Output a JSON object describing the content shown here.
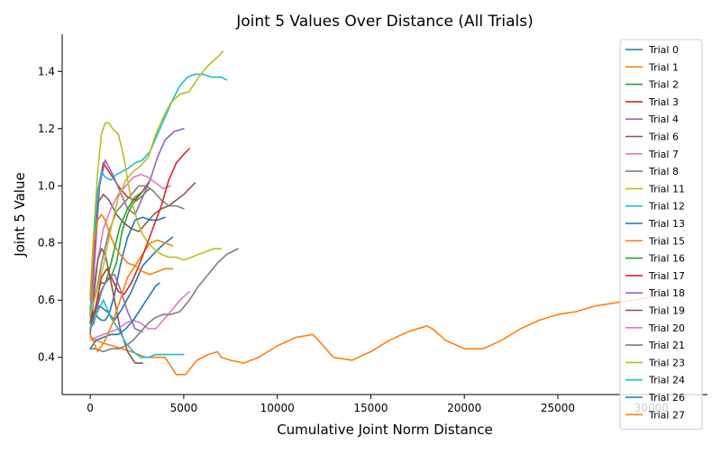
{
  "chart_data": {
    "type": "line",
    "title": "Joint 5 Values Over Distance (All Trials)",
    "xlabel": "Cumulative Joint Norm Distance",
    "ylabel": "Joint 5 Value",
    "xlim": [
      -1500,
      33000
    ],
    "ylim": [
      0.27,
      1.53
    ],
    "xticks": [
      0,
      5000,
      10000,
      15000,
      20000,
      25000,
      30000
    ],
    "yticks": [
      0.4,
      0.6,
      0.8,
      1.0,
      1.2,
      1.4
    ],
    "xtick_labels": [
      "0",
      "5000",
      "10000",
      "15000",
      "20000",
      "25000",
      "30000"
    ],
    "ytick_labels": [
      "0.4",
      "0.6",
      "0.8",
      "1.0",
      "1.2",
      "1.4"
    ],
    "grid": false,
    "legend_position": "upper right",
    "series": [
      {
        "name": "Trial 0",
        "color": "#1f77b4",
        "x": [
          0,
          200,
          500,
          900,
          1300,
          1700,
          2200,
          2800,
          3500,
          4000,
          4400
        ],
        "y": [
          0.52,
          0.55,
          0.58,
          0.56,
          0.53,
          0.57,
          0.63,
          0.72,
          0.77,
          0.8,
          0.82
        ]
      },
      {
        "name": "Trial 1",
        "color": "#ff7f0e",
        "x": [
          0,
          300,
          700,
          1200,
          1700,
          2200,
          2600,
          3000,
          3500,
          4000,
          4600,
          5100,
          5700,
          6300,
          6800,
          7000,
          7500,
          8200,
          9000,
          10000,
          11000,
          11900,
          12200,
          13000,
          14000,
          15000,
          16000,
          17000,
          18000,
          18300,
          19000,
          20000,
          21000,
          22000,
          23000,
          24000,
          25000,
          26000,
          27000,
          28000,
          29000,
          30000,
          31000
        ],
        "y": [
          0.47,
          0.46,
          0.45,
          0.44,
          0.43,
          0.42,
          0.41,
          0.4,
          0.4,
          0.4,
          0.34,
          0.34,
          0.39,
          0.41,
          0.42,
          0.4,
          0.39,
          0.38,
          0.4,
          0.44,
          0.47,
          0.48,
          0.46,
          0.4,
          0.39,
          0.42,
          0.46,
          0.49,
          0.51,
          0.5,
          0.46,
          0.43,
          0.43,
          0.46,
          0.5,
          0.53,
          0.55,
          0.56,
          0.58,
          0.59,
          0.6,
          0.61,
          0.62
        ]
      },
      {
        "name": "Trial 2",
        "color": "#2ca02c",
        "x": [
          0,
          200,
          500,
          800,
          1100,
          1400,
          1700,
          2000,
          2300,
          2700,
          3000,
          3200
        ],
        "y": [
          0.5,
          0.55,
          0.62,
          0.66,
          0.68,
          0.73,
          0.84,
          0.9,
          0.94,
          0.96,
          0.98,
          0.99
        ]
      },
      {
        "name": "Trial 3",
        "color": "#d62728",
        "x": [
          0,
          200,
          400,
          700,
          1000,
          1300,
          1600,
          2000,
          2400,
          2800,
          3200
        ],
        "y": [
          0.55,
          0.75,
          0.98,
          1.08,
          1.05,
          1.02,
          0.99,
          0.96,
          0.95,
          0.98,
          1.02
        ]
      },
      {
        "name": "Trial 4",
        "color": "#9467bd",
        "x": [
          0,
          200,
          500,
          800,
          1200,
          1600,
          2000,
          2400,
          2800,
          3200,
          3600,
          4000,
          4500,
          5000
        ],
        "y": [
          0.52,
          0.7,
          1.0,
          1.09,
          1.04,
          0.98,
          0.92,
          0.9,
          0.96,
          1.02,
          1.1,
          1.16,
          1.19,
          1.2
        ]
      },
      {
        "name": "Trial 6",
        "color": "#8c564b",
        "x": [
          0,
          200,
          400,
          700,
          1000,
          1400,
          1800,
          2200,
          2600,
          3000,
          3400,
          3800,
          4200,
          4600,
          5000,
          5600
        ],
        "y": [
          0.55,
          0.8,
          0.94,
          0.97,
          0.95,
          0.9,
          0.87,
          0.85,
          0.84,
          0.87,
          0.9,
          0.92,
          0.93,
          0.95,
          0.97,
          1.01
        ]
      },
      {
        "name": "Trial 7",
        "color": "#e377c2",
        "x": [
          0,
          300,
          700,
          1100,
          1500,
          1900,
          2300,
          2700,
          3100,
          3500,
          3900,
          4300
        ],
        "y": [
          0.55,
          0.7,
          0.85,
          0.92,
          0.97,
          1.0,
          1.03,
          1.04,
          1.03,
          1.01,
          0.99,
          1.0
        ]
      },
      {
        "name": "Trial 8",
        "color": "#7f7f7f",
        "x": [
          0,
          300,
          600,
          1000,
          1400,
          1800,
          2200,
          2600,
          3000,
          3400,
          3800,
          4200,
          4600,
          5000
        ],
        "y": [
          0.55,
          0.62,
          0.73,
          0.84,
          0.91,
          0.94,
          0.97,
          1.0,
          1.0,
          0.98,
          0.95,
          0.93,
          0.93,
          0.92
        ]
      },
      {
        "name": "Trial 11",
        "color": "#bcbd22",
        "x": [
          0,
          200,
          400,
          600,
          800,
          1000,
          1200,
          1500,
          1800,
          2000,
          2200,
          2500,
          2800,
          3100,
          3400,
          3800,
          4200,
          4600,
          5000,
          5400,
          5800,
          6200,
          6600,
          7000
        ],
        "y": [
          0.62,
          0.85,
          1.05,
          1.18,
          1.22,
          1.22,
          1.2,
          1.18,
          1.1,
          1.02,
          0.95,
          0.88,
          0.83,
          0.8,
          0.78,
          0.76,
          0.75,
          0.75,
          0.74,
          0.75,
          0.76,
          0.77,
          0.78,
          0.78
        ]
      },
      {
        "name": "Trial 12",
        "color": "#17becf",
        "x": [
          0,
          200,
          400,
          600,
          800,
          1100,
          1400,
          1700,
          2000,
          2400,
          2800,
          3200,
          3600,
          4000,
          4400,
          4800,
          5200,
          5600,
          6000,
          6500,
          7000,
          7300
        ],
        "y": [
          0.55,
          0.8,
          0.98,
          1.05,
          1.03,
          1.02,
          1.04,
          1.05,
          1.06,
          1.08,
          1.09,
          1.12,
          1.18,
          1.24,
          1.3,
          1.35,
          1.38,
          1.39,
          1.39,
          1.38,
          1.38,
          1.37
        ]
      },
      {
        "name": "Trial 13",
        "color": "#1f77b4",
        "x": [
          0,
          200,
          400,
          600,
          800,
          1000,
          1300,
          1600,
          2000,
          2400,
          2800,
          3200,
          3600,
          4000
        ],
        "y": [
          0.52,
          0.56,
          0.54,
          0.53,
          0.53,
          0.55,
          0.62,
          0.72,
          0.82,
          0.88,
          0.89,
          0.88,
          0.88,
          0.89
        ]
      },
      {
        "name": "Trial 15",
        "color": "#ff7f0e",
        "x": [
          0,
          200,
          400,
          600,
          800,
          1000,
          1300,
          1600,
          2000,
          2400,
          2800,
          3200,
          3600,
          4000,
          4400
        ],
        "y": [
          0.6,
          0.8,
          0.88,
          0.9,
          0.88,
          0.84,
          0.79,
          0.76,
          0.73,
          0.72,
          0.76,
          0.8,
          0.81,
          0.8,
          0.79
        ]
      },
      {
        "name": "Trial 16",
        "color": "#2ca02c",
        "x": [
          0,
          200,
          400,
          600,
          800,
          1000,
          1300,
          1600,
          2000,
          2400,
          2800
        ],
        "y": [
          0.52,
          0.6,
          0.65,
          0.66,
          0.66,
          0.7,
          0.78,
          0.86,
          0.92,
          0.96,
          0.98
        ]
      },
      {
        "name": "Trial 17",
        "color": "#d62728",
        "x": [
          0,
          300,
          600,
          900,
          1200,
          1500,
          1800,
          2200,
          2600,
          3000,
          3400,
          3800,
          4200,
          4600,
          5000,
          5300
        ],
        "y": [
          0.5,
          0.58,
          0.68,
          0.71,
          0.67,
          0.63,
          0.62,
          0.66,
          0.72,
          0.79,
          0.86,
          0.93,
          1.02,
          1.08,
          1.11,
          1.13
        ]
      },
      {
        "name": "Trial 18",
        "color": "#9467bd",
        "x": [
          0,
          200,
          400,
          600,
          800,
          1000,
          1300,
          1600,
          2000,
          2400,
          2800
        ],
        "y": [
          0.5,
          0.52,
          0.58,
          0.63,
          0.66,
          0.68,
          0.69,
          0.64,
          0.56,
          0.5,
          0.49
        ]
      },
      {
        "name": "Trial 19",
        "color": "#8c564b",
        "x": [
          0,
          200,
          400,
          600,
          800,
          1000,
          1300,
          1600,
          2000,
          2400,
          2800
        ],
        "y": [
          0.48,
          0.62,
          0.74,
          0.78,
          0.76,
          0.7,
          0.6,
          0.5,
          0.42,
          0.38,
          0.38
        ]
      },
      {
        "name": "Trial 20",
        "color": "#e377c2",
        "x": [
          0,
          300,
          700,
          1100,
          1500,
          1900,
          2300,
          2700,
          3100,
          3500,
          3900,
          4300,
          4800,
          5300
        ],
        "y": [
          0.46,
          0.47,
          0.48,
          0.49,
          0.5,
          0.52,
          0.53,
          0.52,
          0.5,
          0.5,
          0.53,
          0.56,
          0.6,
          0.63
        ]
      },
      {
        "name": "Trial 21",
        "color": "#7f7f7f",
        "x": [
          0,
          300,
          700,
          1100,
          1500,
          1900,
          2300,
          2700,
          3100,
          3500,
          3900,
          4300,
          4800,
          5300,
          5800,
          6300,
          6800,
          7300,
          7900
        ],
        "y": [
          0.43,
          0.43,
          0.42,
          0.43,
          0.43,
          0.44,
          0.46,
          0.49,
          0.52,
          0.54,
          0.55,
          0.55,
          0.56,
          0.6,
          0.65,
          0.69,
          0.73,
          0.76,
          0.78
        ]
      },
      {
        "name": "Trial 23",
        "color": "#bcbd22",
        "x": [
          0,
          300,
          700,
          1100,
          1500,
          1900,
          2300,
          2700,
          3100,
          3500,
          3900,
          4300,
          4800,
          5300,
          5800,
          6300,
          6800,
          7100
        ],
        "y": [
          0.55,
          0.62,
          0.72,
          0.85,
          0.96,
          1.02,
          1.05,
          1.07,
          1.1,
          1.18,
          1.24,
          1.29,
          1.32,
          1.33,
          1.38,
          1.42,
          1.45,
          1.47
        ]
      },
      {
        "name": "Trial 24",
        "color": "#17becf",
        "x": [
          0,
          300,
          700,
          1100,
          1500,
          1900,
          2300,
          2700,
          3100,
          3500,
          3900,
          4300,
          4700,
          5000
        ],
        "y": [
          0.5,
          0.55,
          0.6,
          0.54,
          0.5,
          0.45,
          0.42,
          0.4,
          0.4,
          0.41,
          0.41,
          0.41,
          0.41,
          0.41
        ]
      },
      {
        "name": "Trial 26",
        "color": "#1f77b4",
        "x": [
          0,
          300,
          700,
          1100,
          1500,
          1900,
          2300,
          2700,
          3100,
          3500,
          3700
        ],
        "y": [
          0.43,
          0.46,
          0.47,
          0.48,
          0.48,
          0.5,
          0.53,
          0.57,
          0.61,
          0.65,
          0.66
        ]
      },
      {
        "name": "Trial 27",
        "color": "#ff7f0e",
        "x": [
          0,
          200,
          400,
          600,
          800,
          1200,
          1600,
          2000,
          2400,
          2800,
          3200,
          3600,
          4000,
          4400
        ],
        "y": [
          0.48,
          0.45,
          0.42,
          0.44,
          0.46,
          0.52,
          0.6,
          0.68,
          0.72,
          0.7,
          0.69,
          0.7,
          0.71,
          0.71
        ]
      }
    ]
  }
}
